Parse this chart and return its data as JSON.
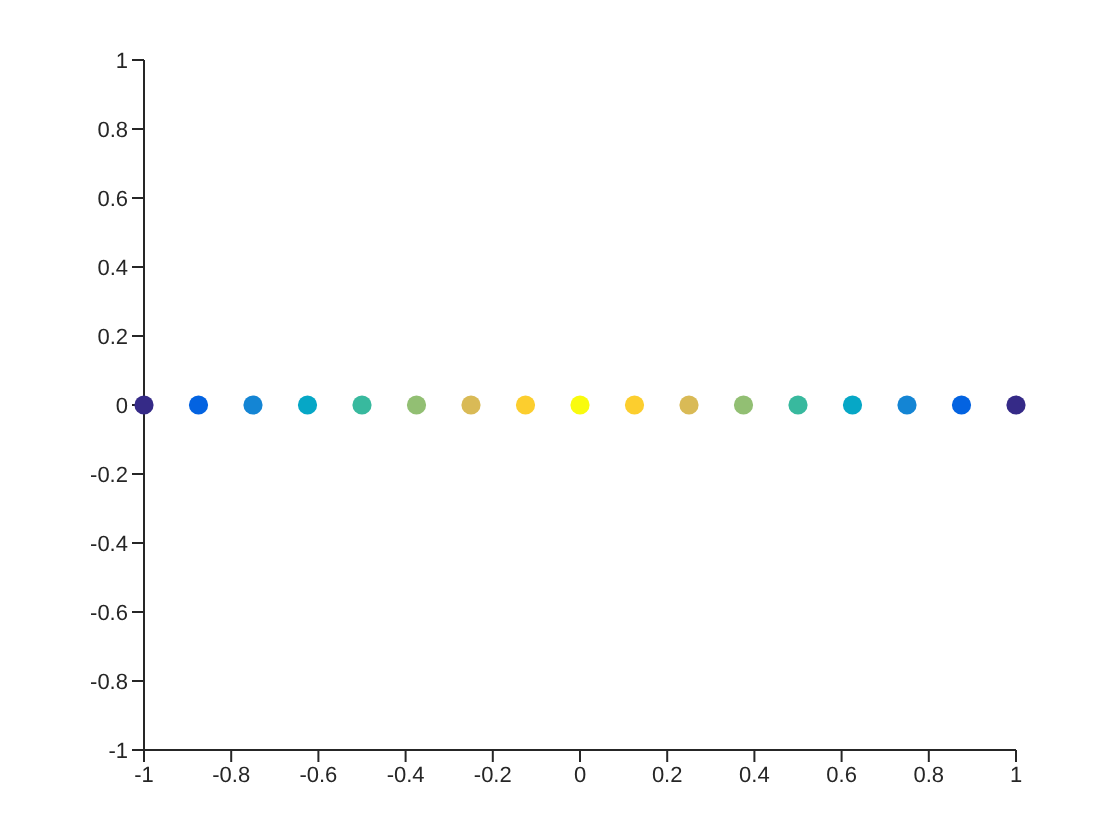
{
  "chart_data": {
    "type": "scatter",
    "x": [
      -1,
      -0.875,
      -0.75,
      -0.625,
      -0.5,
      -0.375,
      -0.25,
      -0.125,
      0,
      0.125,
      0.25,
      0.375,
      0.5,
      0.625,
      0.75,
      0.875,
      1
    ],
    "values": [
      0,
      0,
      0,
      0,
      0,
      0,
      0,
      0,
      0,
      0,
      0,
      0,
      0,
      0,
      0,
      0,
      0
    ],
    "colors": [
      "#352a87",
      "#0363e1",
      "#1485d4",
      "#06a7c6",
      "#38b99e",
      "#92bf73",
      "#d9ba56",
      "#fcce2e",
      "#f9fb0e",
      "#fcce2e",
      "#d9ba56",
      "#92bf73",
      "#38b99e",
      "#06a7c6",
      "#1485d4",
      "#0363e1",
      "#352a87"
    ],
    "xlim": [
      -1,
      1
    ],
    "ylim": [
      -1,
      1
    ],
    "xticks": [
      -1,
      -0.8,
      -0.6,
      -0.4,
      -0.2,
      0,
      0.2,
      0.4,
      0.6,
      0.8,
      1
    ],
    "yticks": [
      -1,
      -0.8,
      -0.6,
      -0.4,
      -0.2,
      0,
      0.2,
      0.4,
      0.6,
      0.8,
      1
    ],
    "marker": "circle"
  }
}
